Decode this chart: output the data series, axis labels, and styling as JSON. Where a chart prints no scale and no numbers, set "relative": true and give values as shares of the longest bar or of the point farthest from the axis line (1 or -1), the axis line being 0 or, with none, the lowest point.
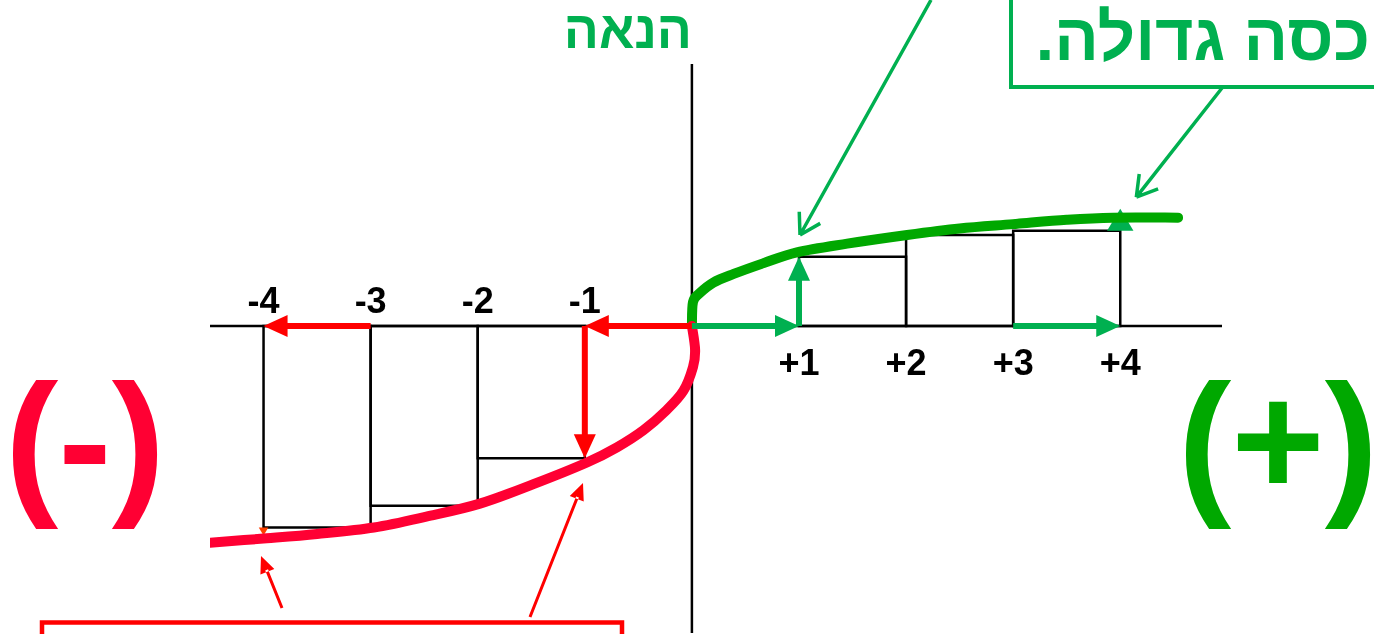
{
  "chart_data": {
    "type": "line",
    "ylabel": "הנאה",
    "relative": true,
    "annotations": [
      "(-)",
      "(+)",
      {
        "text": "כסה גדולה.",
        "x": 4,
        "y": 0.5
      }
    ],
    "xlim": [
      -4.5,
      4.95
    ],
    "xticks": [
      {
        "value": 1,
        "label": "+1"
      },
      {
        "value": 2,
        "label": "+2"
      },
      {
        "value": 3,
        "label": "+3"
      },
      {
        "value": 4,
        "label": "+4"
      }
    ],
    "x2lim": [
      -4.5,
      4.95
    ],
    "x2ticks": [
      -4,
      -3,
      -2,
      -1
    ],
    "series": [
      {
        "color": "#00a800",
        "x": [
          0,
          0.01,
          0.07,
          0.2,
          0.39,
          0.67,
          0.98,
          1.45,
          2.01,
          2.5,
          3.0,
          3.5,
          3.93,
          4.54
        ],
        "values": [
          0,
          0.11,
          0.15,
          0.2,
          0.24,
          0.29,
          0.34,
          0.38,
          0.42,
          0.45,
          0.47,
          0.49,
          0.5,
          0.5
        ]
      },
      {
        "color": "#ff0033",
        "x": [
          0,
          0.03,
          0.01,
          -0.08,
          -0.24,
          -0.45,
          -0.7,
          -0.98,
          -1.48,
          -1.98,
          -2.48,
          -2.97,
          -3.5,
          -3.97,
          -4.5
        ],
        "values": [
          0,
          -0.11,
          -0.19,
          -0.3,
          -0.39,
          -0.48,
          -0.56,
          -0.63,
          -0.73,
          -0.82,
          -0.88,
          -0.93,
          -0.96,
          -0.98,
          -1
        ]
      },
      {
        "type": "histogram",
        "color": "#000000",
        "bins": [
          -4,
          -3,
          -2,
          -1,
          1,
          2,
          3,
          4
        ],
        "values": [
          -0.93,
          -0.83,
          -0.61,
          null,
          0.32,
          0.42,
          0.44
        ]
      }
    ]
  }
}
